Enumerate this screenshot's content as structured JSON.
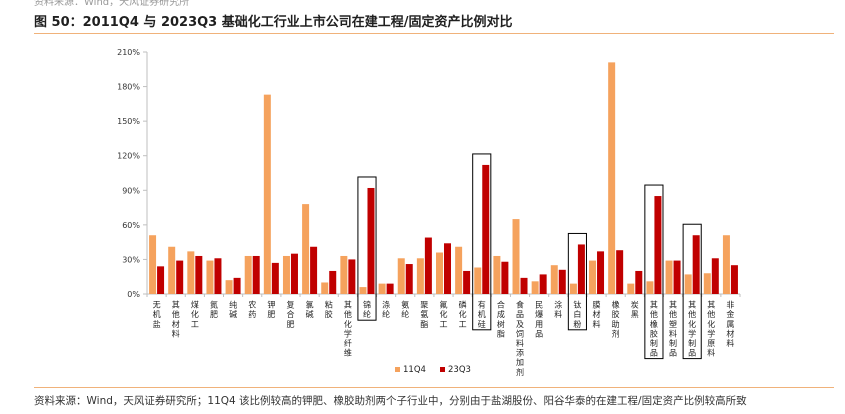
{
  "header": {
    "top_note": "资料来源：Wind，天风证券研究所",
    "title": "图 50：2011Q4 与 2023Q3 基础化工行业上市公司在建工程/固定资产比例对比"
  },
  "footer": {
    "source": "资料来源：Wind，天风证券研究所；11Q4 该比例较高的钾肥、橡胶助剂两个子行业中，分别由于盐湖股份、阳谷华泰的在建工程/固定资产比例较高所致"
  },
  "colors": {
    "series_11q4": "#f5a25d",
    "series_23q3": "#c00000",
    "axis": "#bfbfbf",
    "highlight_box": "#000000"
  },
  "chart_data": {
    "type": "bar",
    "title": "",
    "xlabel": "",
    "ylabel": "",
    "ylim": [
      0,
      210
    ],
    "yticks": [
      0,
      30,
      60,
      90,
      120,
      150,
      180,
      210
    ],
    "ytick_labels": [
      "0%",
      "30%",
      "60%",
      "90%",
      "120%",
      "150%",
      "180%",
      "210%"
    ],
    "grid": false,
    "legend_position": "bottom",
    "categories": [
      "无机盐",
      "其他材料",
      "煤化工",
      "氮肥",
      "纯碱",
      "农药",
      "钾肥",
      "复合肥",
      "氯碱",
      "粘胶",
      "其他化学纤维",
      "锦纶",
      "涤纶",
      "氨纶",
      "聚氨酯",
      "氟化工",
      "磷化工",
      "有机硅",
      "合成树脂",
      "食品及饲料添加剂",
      "民爆用品",
      "涂料",
      "钛白粉",
      "膜材料",
      "橡胶助剂",
      "炭黑",
      "其他橡胶制品",
      "其他塑料制品",
      "其他化学制品",
      "其他化学原料",
      "非金属材料"
    ],
    "series": [
      {
        "name": "11Q4",
        "values": [
          51,
          41,
          37,
          29,
          12,
          33,
          173,
          33,
          78,
          10,
          33,
          6,
          9,
          31,
          31,
          36,
          41,
          23,
          33,
          65,
          11,
          25,
          9,
          29,
          201,
          9,
          11,
          29,
          17,
          18,
          51
        ]
      },
      {
        "name": "23Q3",
        "values": [
          24,
          29,
          33,
          31,
          14,
          33,
          27,
          35,
          41,
          20,
          30,
          92,
          9,
          26,
          49,
          44,
          20,
          112,
          28,
          14,
          17,
          21,
          43,
          37,
          38,
          20,
          85,
          29,
          51,
          31,
          25
        ]
      }
    ],
    "highlighted_categories": [
      "锦纶",
      "有机硅",
      "钛白粉",
      "其他橡胶制品",
      "其他化学制品"
    ]
  }
}
